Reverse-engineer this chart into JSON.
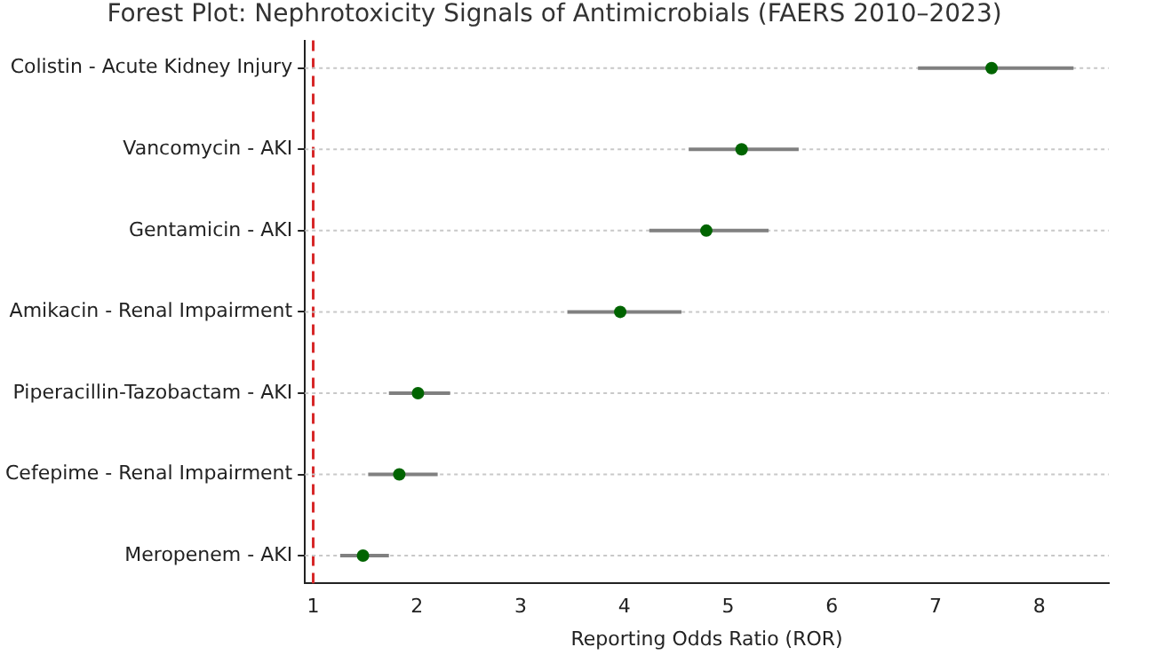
{
  "chart_data": {
    "type": "scatter",
    "title": "Forest Plot: Nephrotoxicity Signals of Antimicrobials (FAERS 2010–2023)",
    "xlabel": "Reporting Odds Ratio (ROR)",
    "orientation": "horizontal",
    "categories": [
      "Colistin - Acute Kidney Injury",
      "Vancomycin - AKI",
      "Gentamicin - AKI",
      "Amikacin - Renal Impairment",
      "Piperacillin-Tazobactam - AKI",
      "Cefepime - Renal Impairment",
      "Meropenem - AKI"
    ],
    "values": [
      7.54,
      5.13,
      4.79,
      3.96,
      2.01,
      1.83,
      1.48
    ],
    "errors": [
      [
        6.83,
        8.33
      ],
      [
        4.62,
        5.68
      ],
      [
        4.24,
        5.39
      ],
      [
        3.45,
        4.55
      ],
      [
        1.73,
        2.32
      ],
      [
        1.53,
        2.2
      ],
      [
        1.26,
        1.73
      ]
    ],
    "color": "#006400",
    "marker": "circle",
    "grid": "y",
    "legend": false,
    "xlim": [
      0.92,
      8.67
    ],
    "xticks": [
      1,
      2,
      3,
      4,
      5,
      6,
      7,
      8
    ],
    "ref_lines": [
      {
        "axis": "x",
        "value": 1,
        "color": "#d62728",
        "line_style": "dashed"
      }
    ]
  }
}
